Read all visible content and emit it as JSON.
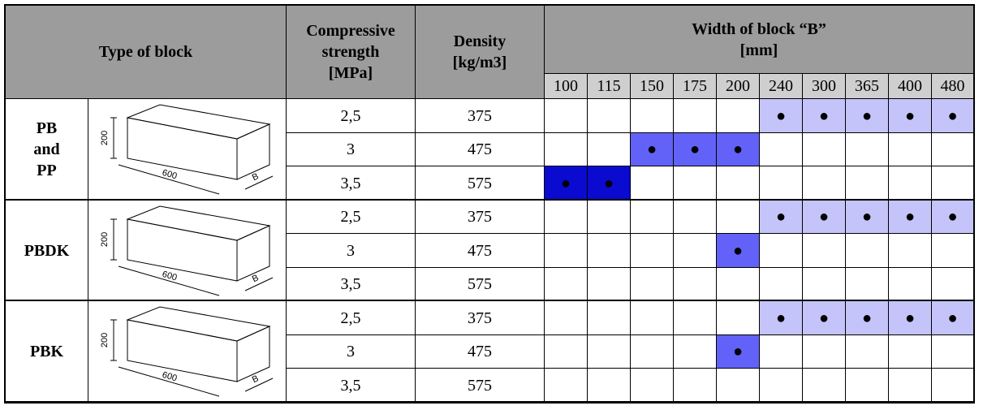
{
  "header": {
    "type": "Type of block",
    "strength": [
      "Compressive",
      "strength",
      "[MPa]"
    ],
    "density": [
      "Density",
      "[kg/m3]"
    ],
    "width": [
      "Width of block “B”",
      "[mm]"
    ],
    "widths": [
      "100",
      "115",
      "150",
      "175",
      "200",
      "240",
      "300",
      "365",
      "400",
      "480"
    ]
  },
  "groups": [
    {
      "name": [
        "PB",
        "and",
        "PP"
      ],
      "drawing": {
        "height": "200",
        "length": "600",
        "width": "B"
      },
      "rows": [
        {
          "strength": "2,5",
          "density": "375",
          "color": "#c4c4fa",
          "cells": [
            null,
            null,
            null,
            null,
            null,
            "●",
            "●",
            "●",
            "●",
            "●"
          ]
        },
        {
          "strength": "3",
          "density": "475",
          "color": "#6262f8",
          "cells": [
            null,
            null,
            "●",
            "●",
            "●",
            null,
            null,
            null,
            null,
            null
          ]
        },
        {
          "strength": "3,5",
          "density": "575",
          "color": "#0a0ad0",
          "cells": [
            "●",
            "●",
            null,
            null,
            null,
            null,
            null,
            null,
            null,
            null
          ]
        }
      ]
    },
    {
      "name": [
        "PBDK"
      ],
      "drawing": {
        "height": "200",
        "length": "600",
        "width": "B"
      },
      "rows": [
        {
          "strength": "2,5",
          "density": "375",
          "color": "#c4c4fa",
          "cells": [
            null,
            null,
            null,
            null,
            null,
            "●",
            "●",
            "●",
            "●",
            "●"
          ]
        },
        {
          "strength": "3",
          "density": "475",
          "color": "#6262f8",
          "cells": [
            null,
            null,
            null,
            null,
            "●",
            null,
            null,
            null,
            null,
            null
          ]
        },
        {
          "strength": "3,5",
          "density": "575",
          "color": "#6262f8",
          "cells": [
            null,
            null,
            null,
            null,
            null,
            null,
            null,
            null,
            null,
            null
          ]
        }
      ]
    },
    {
      "name": [
        "PBK"
      ],
      "drawing": {
        "height": "200",
        "length": "600",
        "width": "B"
      },
      "rows": [
        {
          "strength": "2,5",
          "density": "375",
          "color": "#c4c4fa",
          "cells": [
            null,
            null,
            null,
            null,
            null,
            "●",
            "●",
            "●",
            "●",
            "●"
          ]
        },
        {
          "strength": "3",
          "density": "475",
          "color": "#6262f8",
          "cells": [
            null,
            null,
            null,
            null,
            "●",
            null,
            null,
            null,
            null,
            null
          ]
        },
        {
          "strength": "3,5",
          "density": "575",
          "color": "#6262f8",
          "cells": [
            null,
            null,
            null,
            null,
            null,
            null,
            null,
            null,
            null,
            null
          ]
        }
      ]
    }
  ]
}
